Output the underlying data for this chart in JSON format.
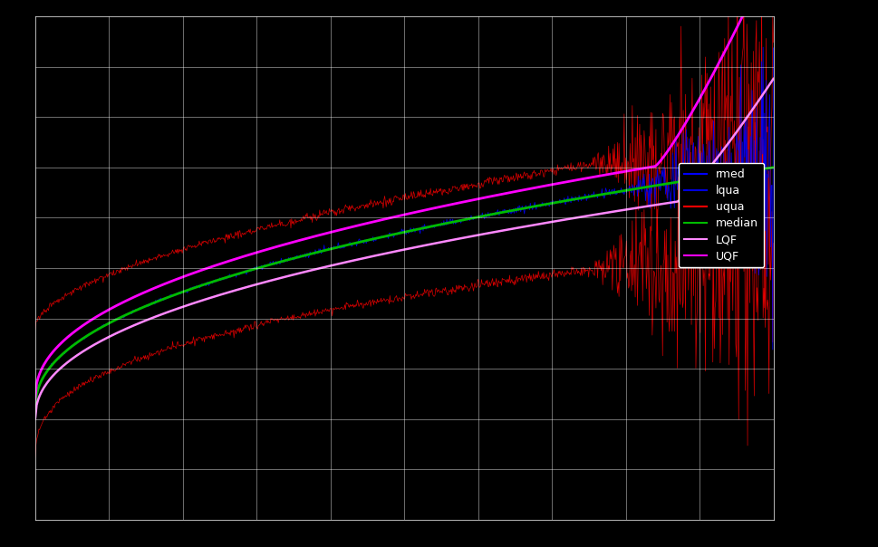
{
  "background_color": "#000000",
  "text_color": "#ffffff",
  "grid_color": "#ffffff",
  "fig_width": 9.7,
  "fig_height": 6.04,
  "xlim": [
    0.0,
    1.0
  ],
  "ylim": [
    -0.5,
    0.5
  ],
  "n_points": 1000,
  "legend_labels": [
    "rmed",
    "lqua",
    "uqua",
    "median",
    "LQF",
    "UQF"
  ],
  "legend_colors": [
    "#0000ff",
    "#0000dd",
    "#ff0000",
    "#00cc00",
    "#ff88ff",
    "#ff00ff"
  ],
  "grid_xticks": [
    0.1,
    0.2,
    0.3,
    0.4,
    0.5,
    0.6,
    0.7,
    0.8,
    0.9
  ],
  "grid_yticks": [
    -0.4,
    -0.3,
    -0.2,
    -0.1,
    0.0,
    0.1,
    0.2,
    0.3,
    0.4
  ]
}
